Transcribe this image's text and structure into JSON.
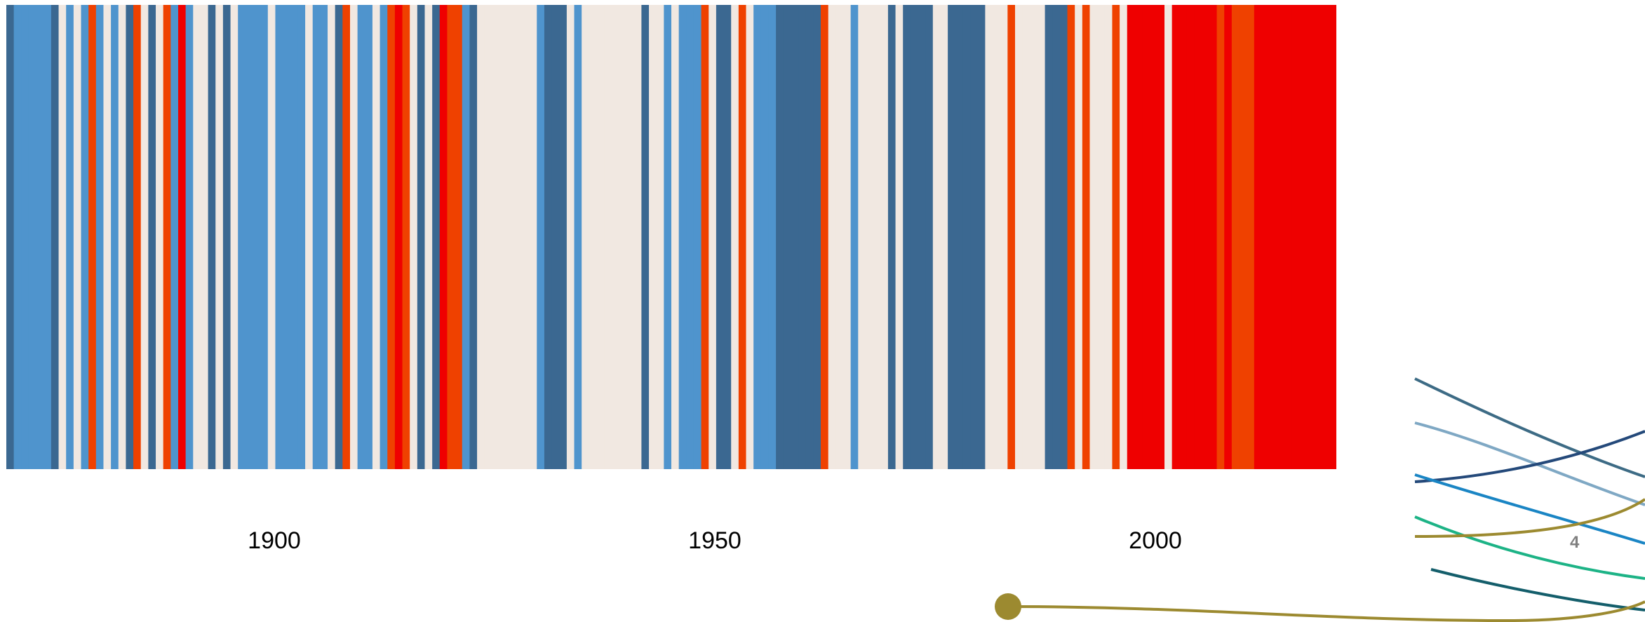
{
  "chart_data": {
    "type": "heatmap",
    "title": "",
    "xlabel": "",
    "ylabel": "",
    "x_ticks": [
      "1900",
      "1950",
      "2000"
    ],
    "x_tick_years": [
      1900,
      1950,
      2000
    ],
    "xlim": [
      1870,
      2020
    ],
    "colors": {
      "dark_blue": "#3b6891",
      "medium_blue": "#4f94cd",
      "neutral": "#f1e8e1",
      "orange": "#ef4100",
      "red": "#ef0000"
    },
    "stripe_codes": "0111110212131212032023141220202111121111211203211213432020433102222222210002122222222022121113200232111000000322212222020000220000022232222000323222324444424444443433344444444444",
    "code_legend": {
      "0": "dark_blue",
      "1": "medium_blue",
      "2": "neutral",
      "3": "orange",
      "4": "red"
    }
  },
  "decoration": {
    "page_number": "4",
    "page_number_color": "#7f7f7f",
    "line_colors": [
      "#3d6b85",
      "#7fa8c4",
      "#24497a",
      "#1a85c4",
      "#1db386",
      "#9c8a30",
      "#145e6b"
    ],
    "dot_color": "#9c8a30"
  }
}
